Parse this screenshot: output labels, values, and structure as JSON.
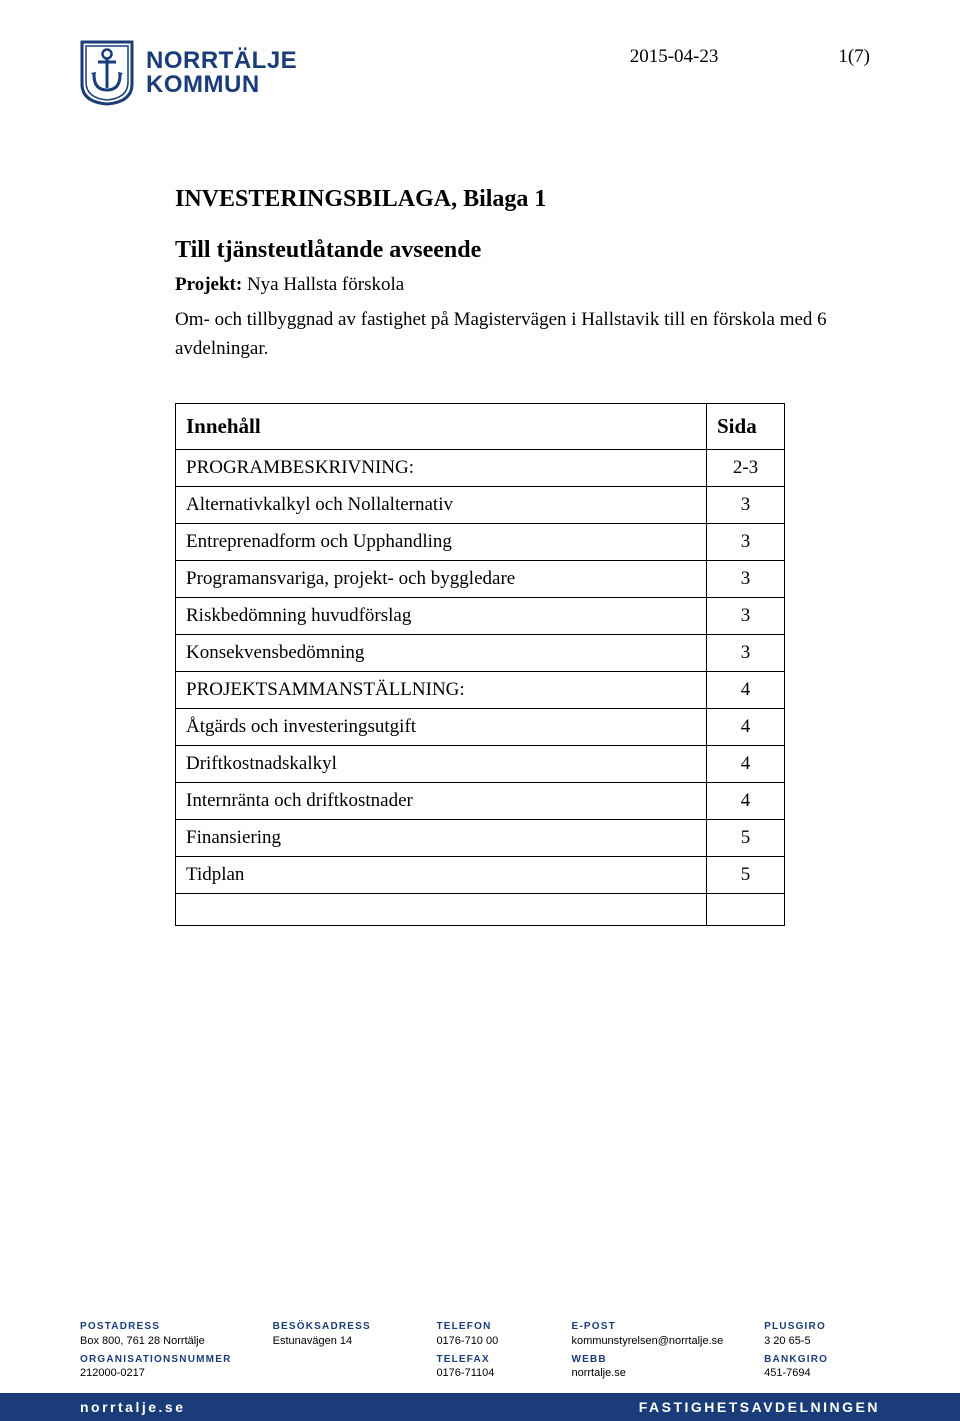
{
  "header": {
    "org_name_line1": "NORRTÄLJE",
    "org_name_line2": "KOMMUN",
    "date": "2015-04-23",
    "page_indicator": "1(7)",
    "crest_colors": {
      "shield_fill": "#ffffff",
      "shield_border": "#1a3d7a",
      "anchor": "#1a3d7a"
    }
  },
  "document": {
    "title": "INVESTERINGSBILAGA, Bilaga 1",
    "subheading": "Till tjänsteutlåtande avseende",
    "project_label": "Projekt:",
    "project_name": "Nya Hallsta förskola",
    "description": "Om- och tillbyggnad av fastighet på Magistervägen i Hallstavik till en förskola med 6 avdelningar."
  },
  "toc": {
    "col_headers": {
      "content": "Innehåll",
      "page": "Sida"
    },
    "rows": [
      {
        "label": "PROGRAMBESKRIVNING:",
        "page": "2-3",
        "section": true
      },
      {
        "label": "Alternativkalkyl och Nollalternativ",
        "page": "3"
      },
      {
        "label": "Entreprenadform och Upphandling",
        "page": "3"
      },
      {
        "label": "Programansvariga, projekt- och byggledare",
        "page": "3"
      },
      {
        "label": "Riskbedömning huvudförslag",
        "page": "3"
      },
      {
        "label": "Konsekvensbedömning",
        "page": "3"
      },
      {
        "label": "PROJEKTSAMMANSTÄLLNING:",
        "page": "4",
        "section": true
      },
      {
        "label": "Åtgärds och investeringsutgift",
        "page": "4"
      },
      {
        "label": "Driftkostnadskalkyl",
        "page": "4"
      },
      {
        "label": "Internränta och driftkostnader",
        "page": "4"
      },
      {
        "label": "Finansiering",
        "page": "5"
      },
      {
        "label": "Tidplan",
        "page": "5"
      },
      {
        "label": "",
        "page": "",
        "empty": true
      }
    ]
  },
  "footer": {
    "cols": [
      {
        "items": [
          {
            "label": "POSTADRESS",
            "value": "Box 800, 761 28 Norrtälje"
          },
          {
            "label": "ORGANISATIONSNUMMER",
            "value": "212000-0217"
          }
        ]
      },
      {
        "items": [
          {
            "label": "BESÖKSADRESS",
            "value": "Estunavägen 14"
          }
        ]
      },
      {
        "items": [
          {
            "label": "TELEFON",
            "value": "0176-710 00"
          },
          {
            "label": "TELEFAX",
            "value": "0176-71104"
          }
        ]
      },
      {
        "items": [
          {
            "label": "E-POST",
            "value": "kommunstyrelsen@norrtalje.se"
          },
          {
            "label": "WEBB",
            "value": "norrtalje.se"
          }
        ]
      },
      {
        "items": [
          {
            "label": "PLUSGIRO",
            "value": "3 20 65-5"
          },
          {
            "label": "BANKGIRO",
            "value": "451-7694"
          }
        ]
      }
    ],
    "bar": {
      "left": "norrtalje.se",
      "right": "FASTIGHETSAVDELNINGEN"
    }
  }
}
